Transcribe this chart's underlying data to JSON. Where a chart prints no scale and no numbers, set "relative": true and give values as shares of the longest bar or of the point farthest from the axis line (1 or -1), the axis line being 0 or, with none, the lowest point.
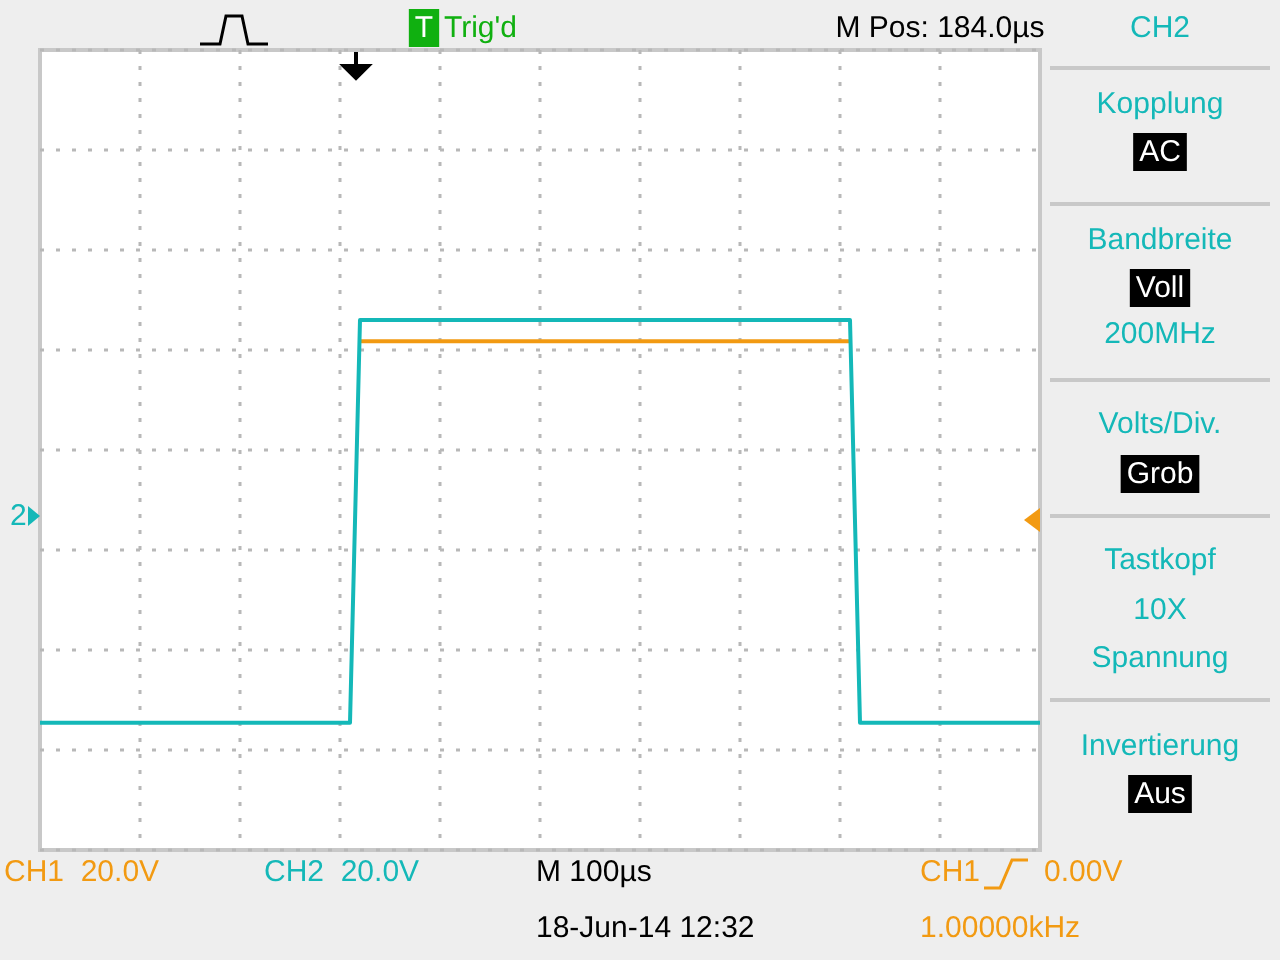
{
  "chart_data": {
    "type": "line",
    "relative": true,
    "grid": true,
    "categories": [
      null,
      null,
      null,
      null,
      null,
      null,
      null,
      null,
      null,
      null,
      null,
      null,
      null,
      null,
      null,
      null,
      null,
      null,
      null,
      null,
      null,
      null,
      null,
      null,
      null,
      null,
      null,
      null,
      null,
      null,
      null,
      null,
      null,
      null,
      null,
      null,
      null,
      null,
      null,
      null,
      null,
      null,
      null,
      null,
      null,
      null,
      null,
      null,
      null,
      null,
      null,
      null,
      null,
      null,
      null,
      null,
      null,
      null,
      null,
      null,
      null,
      null,
      null,
      null,
      null,
      null,
      null,
      null,
      null,
      null,
      null,
      null,
      null,
      null,
      null,
      null,
      null,
      null,
      null,
      null,
      null,
      null,
      null,
      null,
      null,
      null,
      null,
      null,
      null,
      null,
      null,
      null,
      null,
      null,
      null,
      null,
      null,
      null,
      null,
      null,
      null
    ],
    "series": [
      {
        "color": "#f29a12",
        "values": [
          null,
          null,
          null,
          null,
          null,
          null,
          null,
          null,
          null,
          null,
          null,
          null,
          null,
          null,
          null,
          null,
          null,
          null,
          null,
          null,
          null,
          null,
          null,
          null,
          null,
          null,
          null,
          null,
          null,
          null,
          null,
          null,
          0.96,
          0.96,
          0.96,
          0.96,
          0.96,
          0.96,
          0.96,
          0.96,
          0.96,
          0.96,
          0.96,
          0.96,
          0.96,
          0.96,
          0.96,
          0.96,
          0.96,
          0.96,
          0.96,
          0.96,
          0.96,
          0.96,
          0.96,
          0.96,
          0.96,
          0.96,
          0.96,
          0.96,
          0.96,
          0.96,
          0.96,
          0.96,
          0.96,
          0.96,
          0.96,
          0.96,
          0.96,
          0.96,
          0.96,
          0.96,
          0.96,
          0.96,
          0.96,
          0.96,
          0.96,
          0.96,
          0.96,
          0.96,
          0.96,
          0.96,
          null,
          null,
          null,
          null,
          null,
          null,
          null,
          null,
          null,
          null,
          null,
          null,
          null,
          null,
          null,
          null,
          null,
          null,
          null
        ]
      },
      {
        "color": "#14b8b8",
        "values": [
          0.24,
          0.24,
          0.24,
          0.24,
          0.24,
          0.24,
          0.24,
          0.24,
          0.24,
          0.24,
          0.24,
          0.24,
          0.24,
          0.24,
          0.24,
          0.24,
          0.24,
          0.24,
          0.24,
          0.24,
          0.24,
          0.24,
          0.24,
          0.24,
          0.24,
          0.24,
          0.24,
          0.24,
          0.24,
          0.24,
          0.24,
          0.24,
          1,
          1,
          1,
          1,
          1,
          1,
          1,
          1,
          1,
          1,
          1,
          1,
          1,
          1,
          1,
          1,
          1,
          1,
          1,
          1,
          1,
          1,
          1,
          1,
          1,
          1,
          1,
          1,
          1,
          1,
          1,
          1,
          1,
          1,
          1,
          1,
          1,
          1,
          1,
          1,
          1,
          1,
          1,
          1,
          1,
          1,
          1,
          1,
          1,
          1,
          0.24,
          0.24,
          0.24,
          0.24,
          0.24,
          0.24,
          0.24,
          0.24,
          0.24,
          0.24,
          0.24,
          0.24,
          0.24,
          0.24,
          0.24,
          0.24,
          0.24,
          0.24,
          0.24
        ]
      }
    ],
    "annotations": [
      "T",
      "Trig'd",
      "M Pos: 184.0µs",
      "CH2",
      "Kopplung",
      "AC",
      "Bandbreite",
      "Voll",
      "200MHz",
      "Volts/Div.",
      "Grob",
      "Tastkopf",
      "10X",
      "Spannung",
      "Invertierung",
      "Aus",
      "CH1  20.0V",
      "CH2  20.0V",
      "M 100µs",
      "18-Jun-14 12:32",
      "CH1",
      "0.00V",
      "1.00000kHz",
      "2"
    ]
  }
}
